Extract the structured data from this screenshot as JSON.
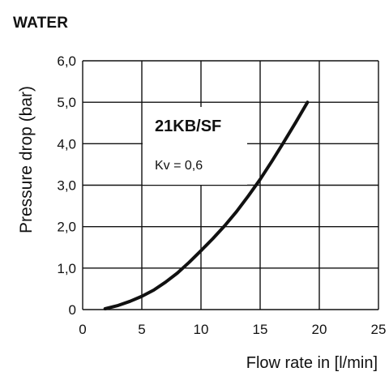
{
  "chart_data": {
    "type": "line",
    "title": "WATER",
    "xlabel": "Flow rate in [l/min]",
    "ylabel": "Pressure drop (bar)",
    "xlim": [
      0,
      25
    ],
    "ylim": [
      0,
      6
    ],
    "x_ticks": [
      "0",
      "5",
      "10",
      "15",
      "20",
      "25"
    ],
    "y_ticks": [
      "0",
      "1,0",
      "2,0",
      "3,0",
      "4,0",
      "5,0",
      "6,0"
    ],
    "grid": true,
    "annotations": [
      "21KB/SF",
      "Kv = 0,6"
    ],
    "series": [
      {
        "x": [
          1.9,
          3,
          4,
          5,
          6,
          7,
          8,
          9,
          10,
          11,
          12,
          13,
          14,
          15,
          16,
          17,
          18,
          19
        ],
        "y": [
          0.02,
          0.1,
          0.2,
          0.32,
          0.47,
          0.66,
          0.88,
          1.14,
          1.42,
          1.71,
          2.02,
          2.36,
          2.74,
          3.14,
          3.58,
          4.04,
          4.51,
          5.0
        ]
      }
    ],
    "line_color": "#111111"
  }
}
